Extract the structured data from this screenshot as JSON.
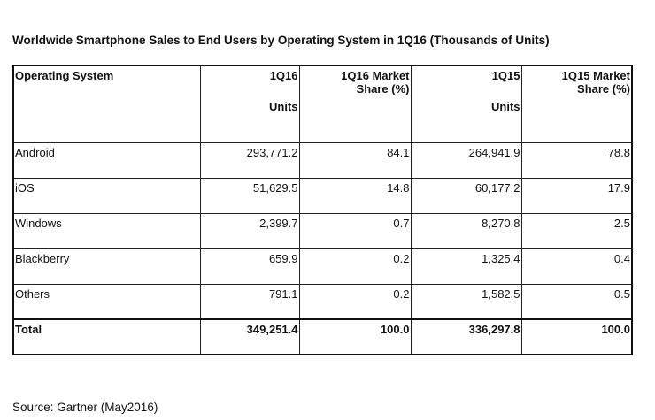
{
  "title": "Worldwide Smartphone Sales to End Users by Operating System in 1Q16 (Thousands of Units)",
  "headers": [
    [
      "Operating System",
      ""
    ],
    [
      "1Q16",
      "Units"
    ],
    [
      "1Q16 Market",
      "Share (%)"
    ],
    [
      "1Q15",
      "Units"
    ],
    [
      "1Q15 Market",
      "Share (%)"
    ]
  ],
  "rows": [
    [
      "Android",
      "293,771.2",
      "84.1",
      "264,941.9",
      "78.8"
    ],
    [
      "iOS",
      "51,629.5",
      "14.8",
      "60,177.2",
      "17.9"
    ],
    [
      "Windows",
      "2,399.7",
      "0.7",
      "8,270.8",
      "2.5"
    ],
    [
      "Blackberry",
      "659.9",
      "0.2",
      "1,325.4",
      "0.4"
    ],
    [
      "Others",
      "791.1",
      "0.2",
      "1,582.5",
      "0.5"
    ],
    [
      "Total",
      "349,251.4",
      "100.0",
      "336,297.8",
      "100.0"
    ]
  ],
  "source": "Source: Gartner (May2016)"
}
